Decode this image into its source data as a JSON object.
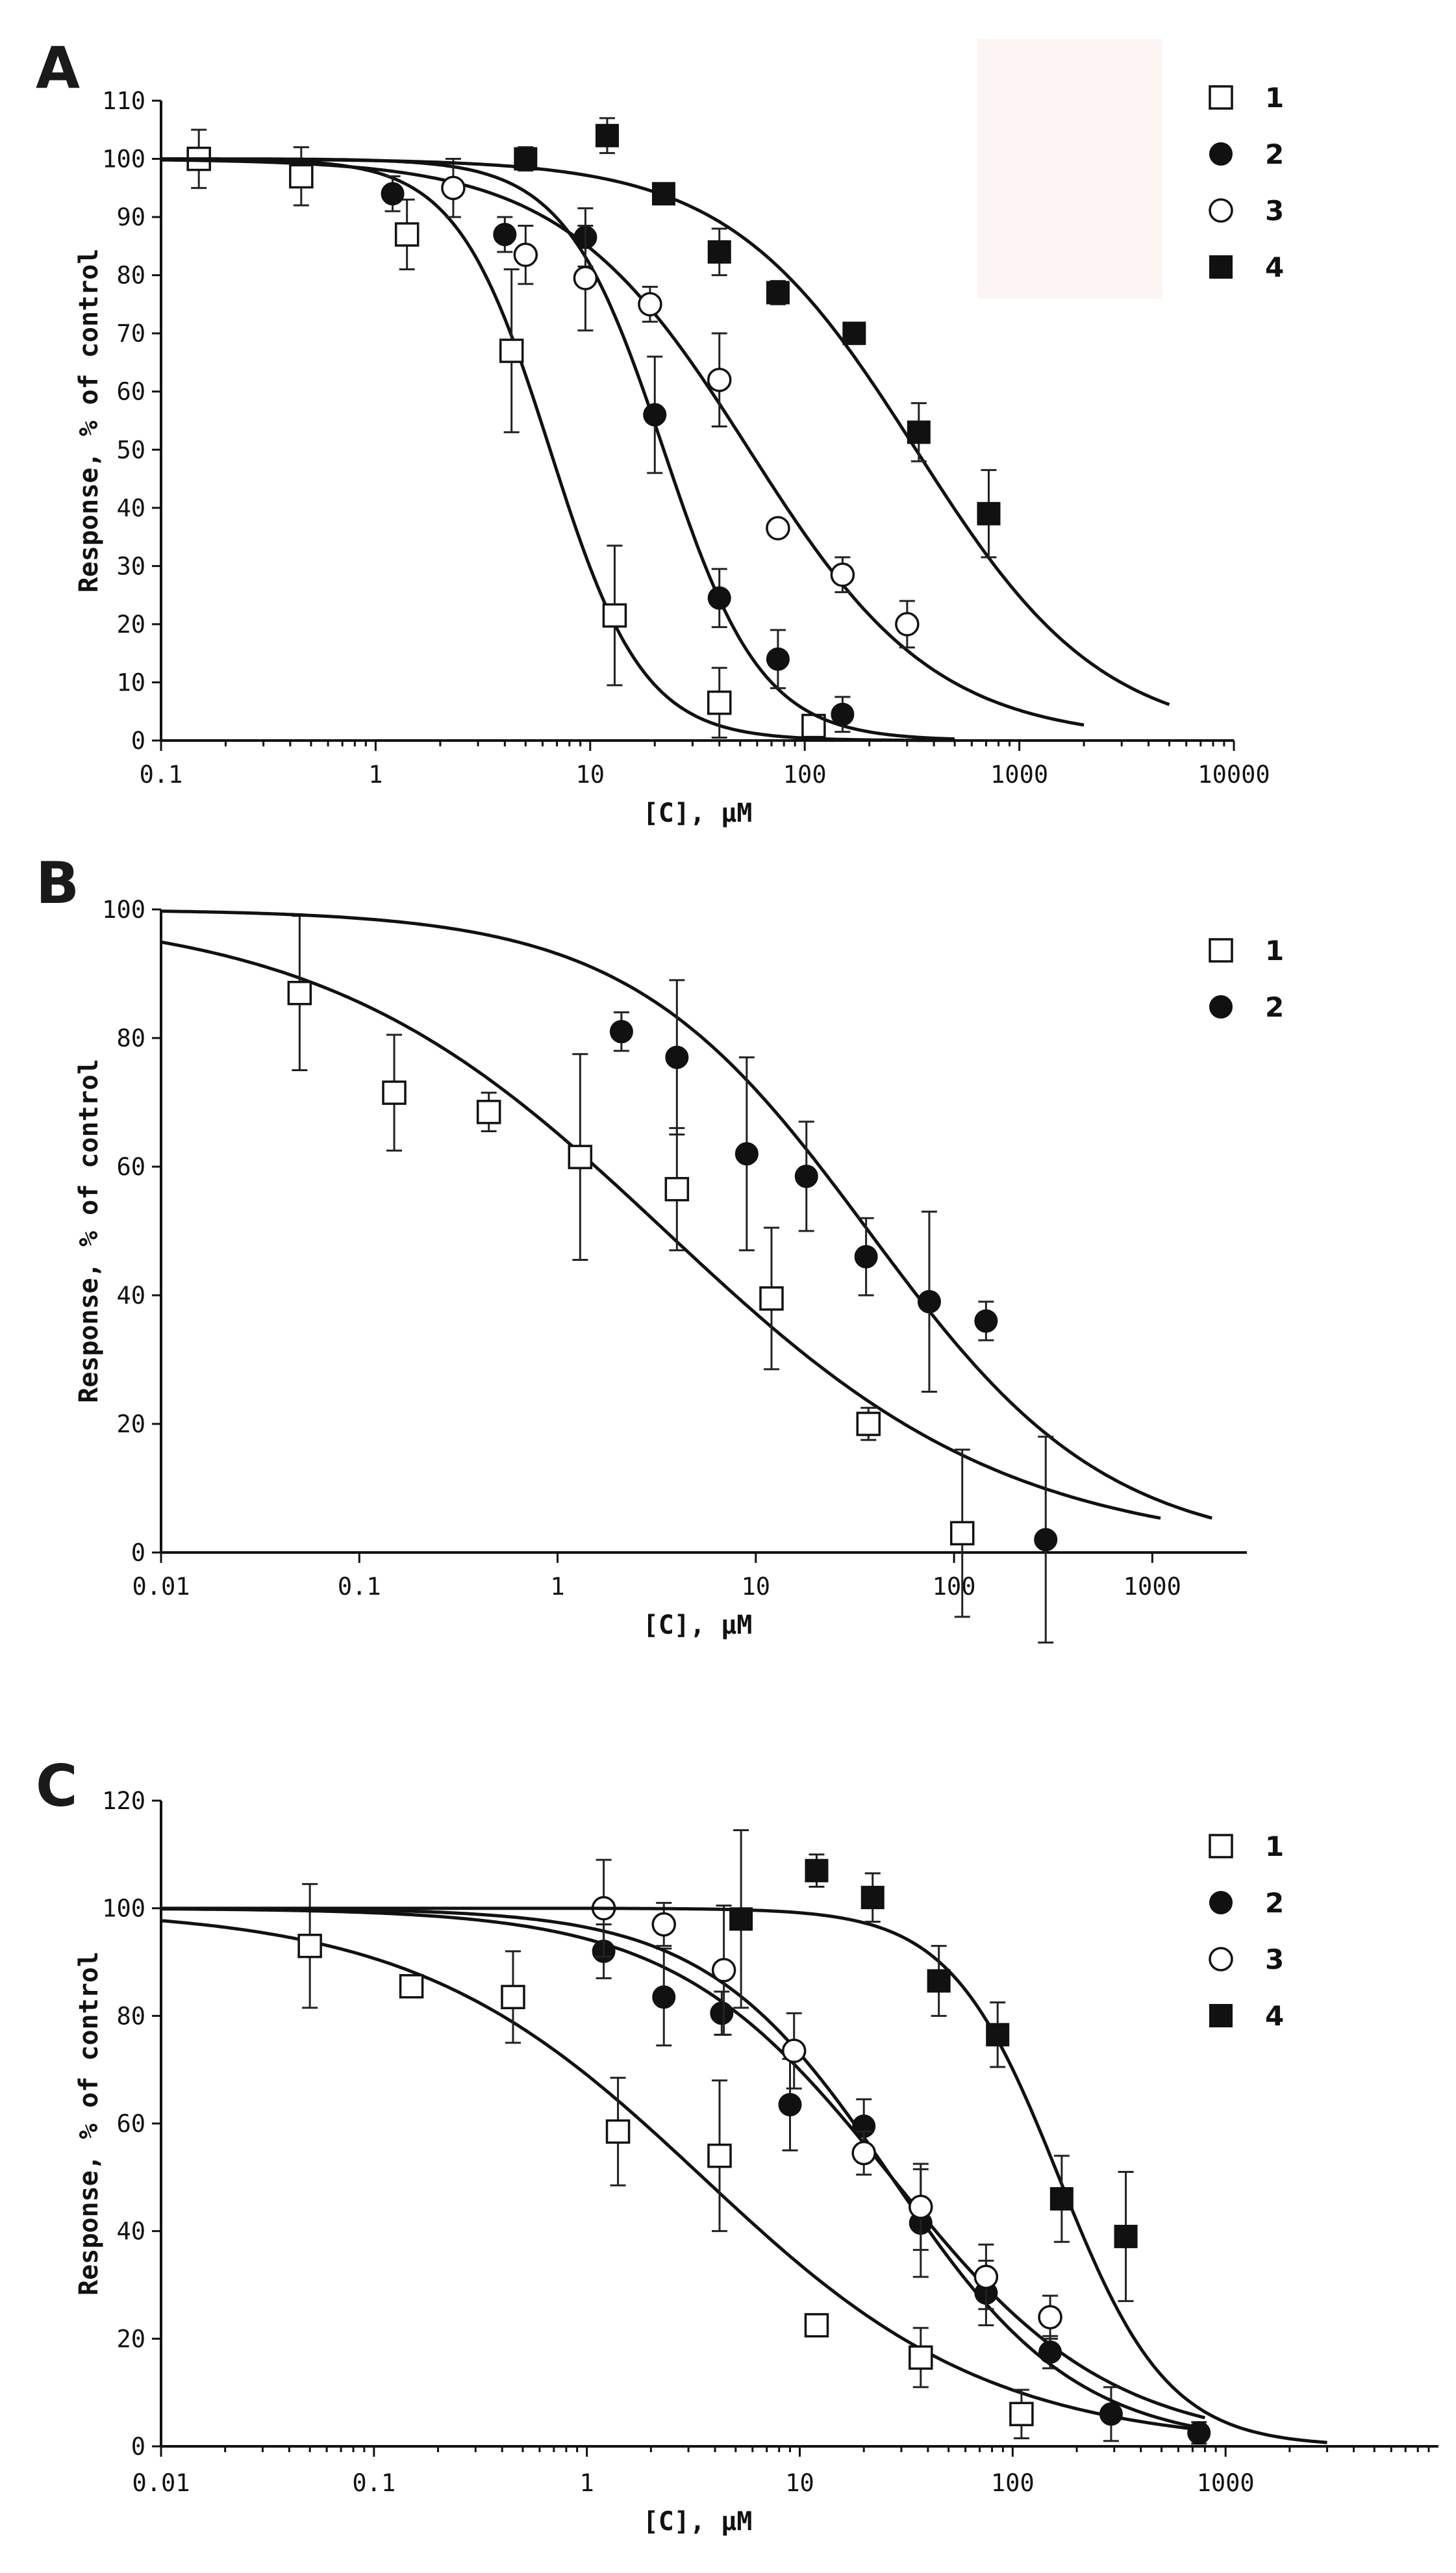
{
  "figure_colors": {
    "ink": "#111111",
    "open_marker_fill": "#ffffff",
    "filled_marker": "#111111",
    "highlight_box": "#fdf4f4"
  },
  "chart_data": [
    {
      "panel": "A",
      "type": "scatter",
      "x_scale": "log",
      "xlabel": "[C], μM",
      "ylabel": "Response, % of control",
      "xlim": [
        0.1,
        10000
      ],
      "ylim": [
        0,
        110
      ],
      "x_ticks": [
        "0.1",
        "1",
        "10",
        "100",
        "1000",
        "10000"
      ],
      "y_ticks": [
        "0",
        "10",
        "20",
        "30",
        "40",
        "50",
        "60",
        "70",
        "80",
        "90",
        "100",
        "110"
      ],
      "legend_position": "top-right",
      "series": [
        {
          "name": "1",
          "marker": "open-square",
          "points": [
            [
              0.15,
              100,
              5
            ],
            [
              0.45,
              97,
              5
            ],
            [
              1.4,
              87,
              6
            ],
            [
              4.3,
              67,
              14
            ],
            [
              13,
              21.5,
              12
            ],
            [
              40,
              6.5,
              6
            ],
            [
              110,
              2.5,
              1.5
            ]
          ],
          "fit": {
            "ic50": 6.5,
            "hill": 2.0,
            "xmin": 0.1,
            "xmax": 500
          }
        },
        {
          "name": "2",
          "marker": "filled-circle",
          "points": [
            [
              1.2,
              94,
              3
            ],
            [
              4,
              87,
              3
            ],
            [
              9.5,
              86.5,
              5
            ],
            [
              20,
              56,
              10
            ],
            [
              40,
              24.5,
              5
            ],
            [
              75,
              14,
              5
            ],
            [
              150,
              4.5,
              3
            ]
          ],
          "fit": {
            "ic50": 22,
            "hill": 1.9,
            "xmin": 0.1,
            "xmax": 500
          }
        },
        {
          "name": "3",
          "marker": "open-circle",
          "points": [
            [
              2.3,
              95,
              5
            ],
            [
              5,
              83.5,
              5
            ],
            [
              9.5,
              79.5,
              9
            ],
            [
              19,
              75,
              3
            ],
            [
              40,
              62,
              8
            ],
            [
              75,
              36.5,
              0
            ],
            [
              150,
              28.5,
              3
            ],
            [
              300,
              20,
              4
            ]
          ],
          "fit": {
            "ic50": 55,
            "hill": 1.0,
            "xmin": 0.1,
            "xmax": 2000
          }
        },
        {
          "name": "4",
          "marker": "filled-square",
          "points": [
            [
              5,
              100,
              2
            ],
            [
              12,
              104,
              3
            ],
            [
              22,
              94,
              0
            ],
            [
              40,
              84,
              4
            ],
            [
              75,
              77,
              2
            ],
            [
              170,
              70,
              0
            ],
            [
              340,
              53,
              5
            ],
            [
              720,
              39,
              7.5
            ]
          ],
          "fit": {
            "ic50": 330,
            "hill": 1.0,
            "xmin": 0.1,
            "xmax": 5000
          }
        }
      ]
    },
    {
      "panel": "B",
      "type": "scatter",
      "x_scale": "log",
      "xlabel": "[C], μM",
      "ylabel": "Response, % of control",
      "xlim": [
        0.01,
        3000
      ],
      "ylim": [
        0,
        100
      ],
      "x_ticks": [
        "0.01",
        "0.1",
        "1",
        "10",
        "100",
        "1000"
      ],
      "y_ticks": [
        "0",
        "20",
        "40",
        "60",
        "80",
        "100"
      ],
      "legend_position": "top-right",
      "series": [
        {
          "name": "1",
          "marker": "open-square",
          "points": [
            [
              0.05,
              87,
              12
            ],
            [
              0.15,
              71.5,
              9
            ],
            [
              0.45,
              68.5,
              3
            ],
            [
              1.3,
              61.5,
              16
            ],
            [
              4,
              56.5,
              9.5
            ],
            [
              12,
              39.5,
              11
            ],
            [
              37,
              20,
              2.5
            ],
            [
              110,
              3,
              13
            ]
          ],
          "fit": {
            "ic50": 3.5,
            "hill": 0.5,
            "xmin": 0.01,
            "xmax": 1100
          }
        },
        {
          "name": "2",
          "marker": "filled-circle",
          "points": [
            [
              2.1,
              81,
              3
            ],
            [
              4,
              77,
              12
            ],
            [
              9,
              62,
              15
            ],
            [
              18,
              58.5,
              8.5
            ],
            [
              36,
              46,
              6
            ],
            [
              75,
              39,
              14
            ],
            [
              145,
              36,
              3
            ],
            [
              290,
              2,
              16
            ]
          ],
          "fit": {
            "ic50": 37,
            "hill": 0.72,
            "xmin": 0.01,
            "xmax": 2000
          }
        }
      ]
    },
    {
      "panel": "C",
      "type": "scatter",
      "x_scale": "log",
      "xlabel": "[C], μM",
      "ylabel": "Response, % of control",
      "xlim": [
        0.01,
        10000
      ],
      "ylim": [
        0,
        120
      ],
      "x_ticks": [
        "0.01",
        "0.1",
        "1",
        "10",
        "100",
        "1000"
      ],
      "y_ticks": [
        "0",
        "20",
        "40",
        "60",
        "80",
        "100",
        "120"
      ],
      "legend_position": "top-right",
      "series": [
        {
          "name": "1",
          "marker": "open-square",
          "points": [
            [
              0.05,
              93,
              11.5
            ],
            [
              0.15,
              85.5,
              2
            ],
            [
              0.45,
              83.5,
              8.5
            ],
            [
              1.4,
              58.5,
              10
            ],
            [
              4.2,
              54,
              14
            ],
            [
              12,
              22.5,
              0
            ],
            [
              37,
              16.5,
              5.5
            ],
            [
              110,
              6,
              4.5
            ]
          ],
          "fit": {
            "ic50": 3.5,
            "hill": 0.64,
            "xmin": 0.01,
            "xmax": 800
          }
        },
        {
          "name": "2",
          "marker": "filled-circle",
          "points": [
            [
              1.2,
              92,
              5
            ],
            [
              2.3,
              83.5,
              9
            ],
            [
              4.3,
              80.5,
              4
            ],
            [
              9,
              63.5,
              8.5
            ],
            [
              20,
              59.5,
              5
            ],
            [
              37,
              41.5,
              10
            ],
            [
              75,
              28.5,
              6
            ],
            [
              150,
              17.5,
              3
            ],
            [
              290,
              6,
              5
            ],
            [
              750,
              2.5,
              2
            ]
          ],
          "fit": {
            "ic50": 27,
            "hill": 0.85,
            "xmin": 0.01,
            "xmax": 800
          }
        },
        {
          "name": "3",
          "marker": "open-circle",
          "points": [
            [
              1.2,
              100,
              9
            ],
            [
              2.3,
              97,
              4
            ],
            [
              4.4,
              88.5,
              12
            ],
            [
              9.4,
              73.5,
              7
            ],
            [
              20,
              54.5,
              4
            ],
            [
              37,
              44.5,
              8
            ],
            [
              75,
              31.5,
              6
            ],
            [
              150,
              24,
              4
            ]
          ],
          "fit": {
            "ic50": 27,
            "hill": 1.0,
            "xmin": 0.01,
            "xmax": 800
          }
        },
        {
          "name": "4",
          "marker": "filled-square",
          "points": [
            [
              5.3,
              98,
              16.5
            ],
            [
              12,
              107,
              3
            ],
            [
              22,
              102,
              4.5
            ],
            [
              45,
              86.5,
              6.5
            ],
            [
              85,
              76.5,
              6
            ],
            [
              170,
              46,
              8
            ],
            [
              340,
              39,
              12
            ]
          ],
          "fit": {
            "ic50": 165,
            "hill": 1.7,
            "xmin": 0.01,
            "xmax": 3000
          }
        }
      ]
    }
  ]
}
